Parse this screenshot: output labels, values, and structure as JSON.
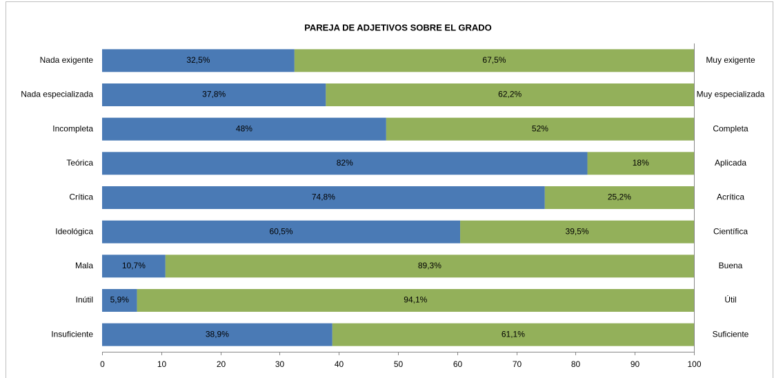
{
  "chart_data": {
    "type": "stacked_barh",
    "title": "PAREJA  DE ADJETIVOS SOBRE EL GRADO",
    "categories": [
      "Nada exigente",
      "Nada especializada",
      "Incompleta",
      "Teórica",
      "Crítica",
      "Ideológica",
      "Mala",
      "Inútil",
      "Insuficiente"
    ],
    "categories_right": [
      "Muy exigente",
      "Muy especializada",
      "Completa",
      "Aplicada",
      "Acrítica",
      "Científica",
      "Buena",
      "Útil",
      "Suficiente"
    ],
    "series": [
      {
        "color": "#4a7ab5",
        "values": [
          32.5,
          37.8,
          48,
          82,
          74.8,
          60.5,
          10.7,
          5.9,
          38.9
        ],
        "value_labels": [
          "32,5%",
          "37,8%",
          "48%",
          "82%",
          "74,8%",
          "60,5%",
          "10,7%",
          "5,9%",
          "38,9%"
        ]
      },
      {
        "color": "#93b05a",
        "values": [
          67.5,
          62.2,
          52,
          18,
          25.2,
          39.5,
          89.3,
          94.1,
          61.1
        ],
        "value_labels": [
          "67,5%",
          "62,2%",
          "52%",
          "18%",
          "25,2%",
          "39,5%",
          "89,3%",
          "94,1%",
          "61,1%"
        ]
      }
    ],
    "xlim": [
      0,
      100
    ],
    "xticks": [
      0,
      10,
      20,
      30,
      40,
      50,
      60,
      70,
      80,
      90,
      100
    ]
  }
}
